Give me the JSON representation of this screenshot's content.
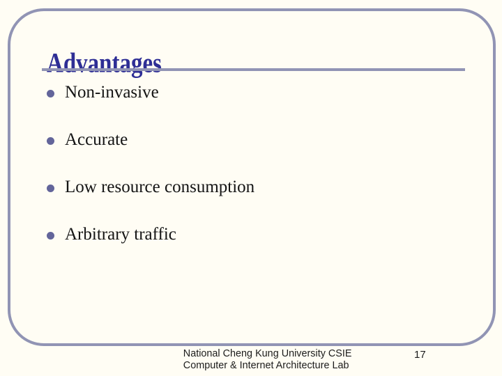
{
  "slide": {
    "title": "Advantages",
    "bullets": [
      "Non-invasive",
      "Accurate",
      "Low resource consumption",
      "Arbitrary traffic"
    ],
    "footer": {
      "line1": "National Cheng Kung University CSIE",
      "line2": "Computer & Internet Architecture Lab"
    },
    "page_number": "17",
    "colors": {
      "background": "#fffdf4",
      "border": "#9194b4",
      "title": "#2e2e95",
      "bullet_dot": "#63659a",
      "body_text": "#141414",
      "footer_text": "#1c1c1c"
    }
  }
}
